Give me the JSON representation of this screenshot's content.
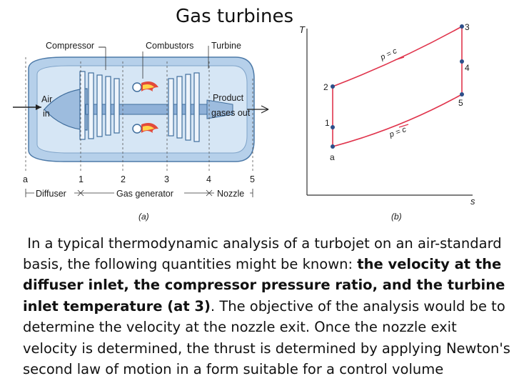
{
  "title": "Gas turbines",
  "figure_a": {
    "labels": {
      "compressor": "Compressor",
      "combustors": "Combustors",
      "turbine": "Turbine",
      "air": "Air",
      "in": "in",
      "product": "Product",
      "gases_out": "gases out",
      "diffuser": "Diffuser",
      "gas_generator": "Gas generator",
      "nozzle": "Nozzle"
    },
    "stations": [
      "a",
      "1",
      "2",
      "3",
      "4",
      "5"
    ],
    "caption": "(a)"
  },
  "figure_b": {
    "y_axis": "T",
    "x_axis": "s",
    "state_labels": [
      "3",
      "4",
      "2",
      "5",
      "1",
      "a"
    ],
    "isobar_high": "p = c",
    "isobar_low": "p = c",
    "caption": "(b)",
    "line_color": "#e0344c"
  },
  "paragraph": {
    "intro": " In a typical thermodynamic analysis of a turbojet on an air-standard basis, the following quantities might be known: ",
    "bold": "the velocity at the diffuser inlet, the compressor pressure ratio, and the turbine inlet temperature (at 3)",
    "rest": ". The objective of the analysis would be to determine the velocity at the nozzle exit. Once the nozzle exit velocity is determined, the thrust is determined by applying Newton's second law of motion in a form suitable for a control volume"
  }
}
